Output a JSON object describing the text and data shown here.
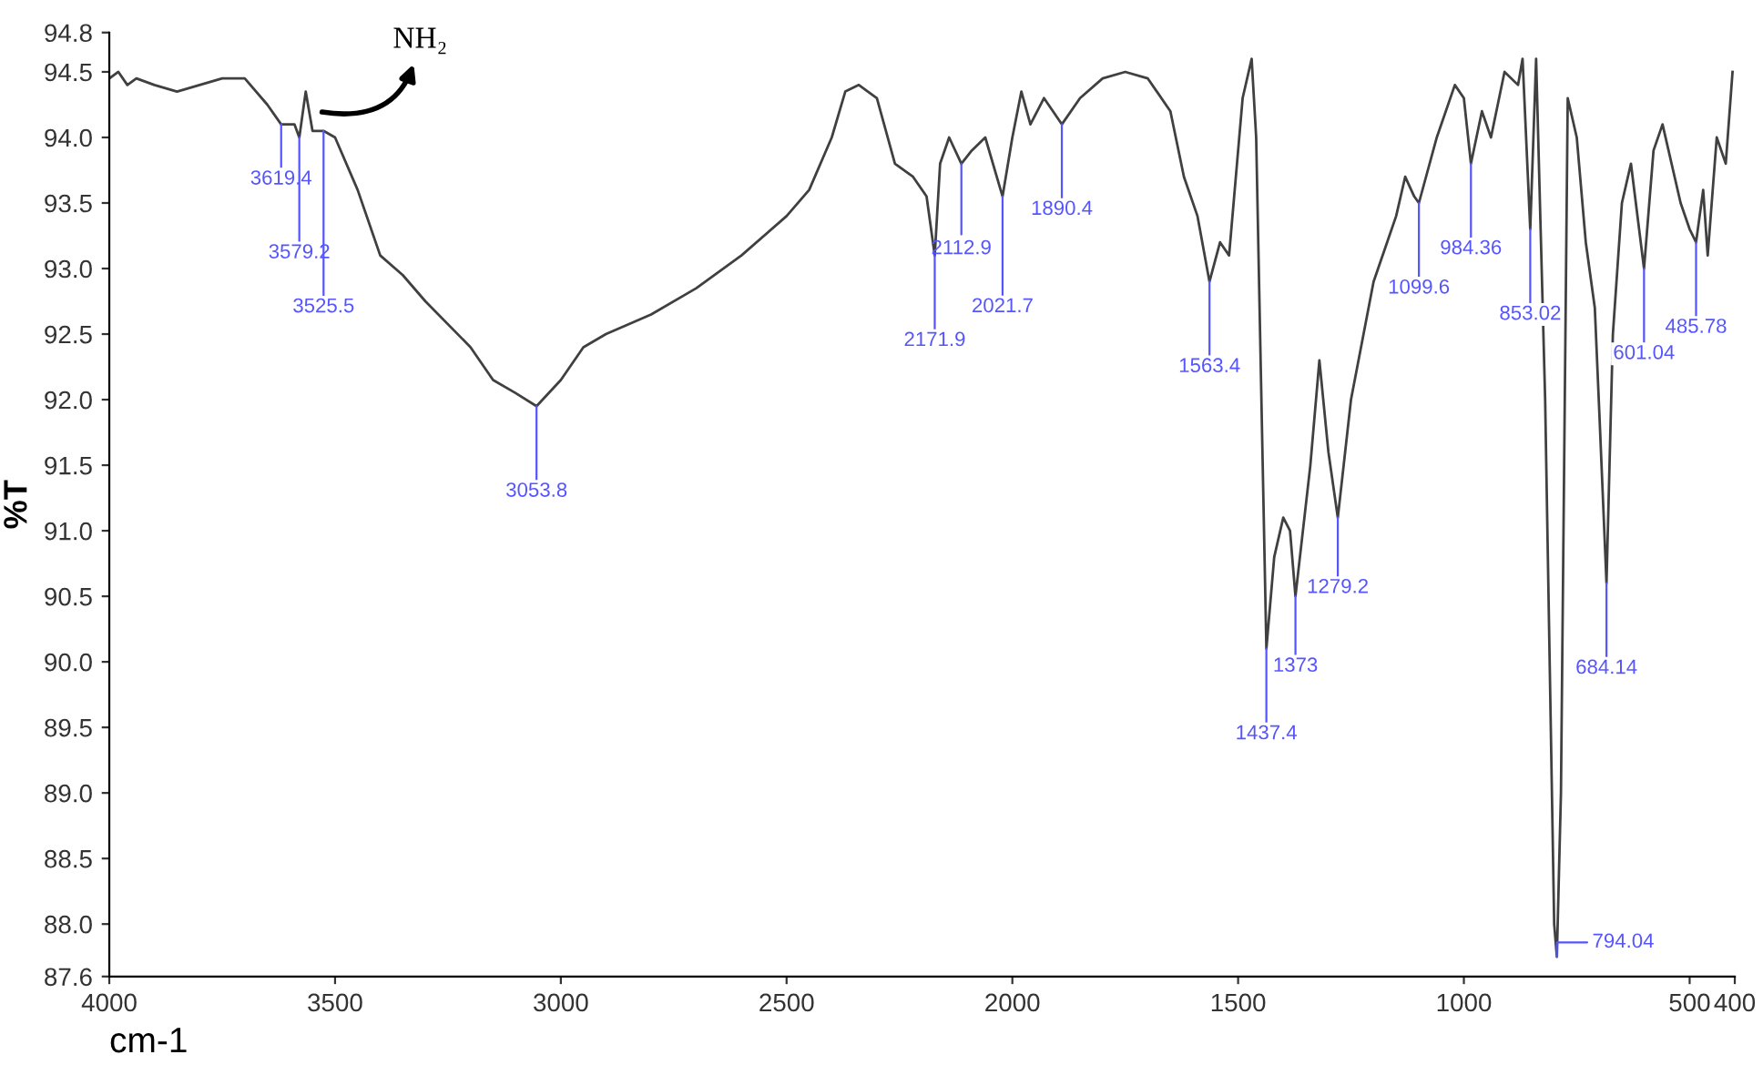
{
  "chart_data": {
    "type": "line",
    "xlabel": "cm-1",
    "ylabel": "%T",
    "xlim": [
      4000,
      400
    ],
    "ylim": [
      87.6,
      94.8
    ],
    "xticks": [
      4000,
      3500,
      3000,
      2500,
      2000,
      1500,
      1000,
      500,
      400
    ],
    "yticks": [
      {
        "value": 87.6,
        "label": "87.6"
      },
      {
        "value": 88,
        "label": "88.0"
      },
      88.5,
      {
        "value": 89,
        "label": "89.0"
      },
      89.5,
      {
        "value": 90,
        "label": "90.0"
      },
      90.5,
      {
        "value": 91,
        "label": "91.0"
      },
      91.5,
      {
        "value": 92,
        "label": "92.0"
      },
      92.5,
      {
        "value": 93,
        "label": "93.0"
      },
      93.5,
      {
        "value": 94,
        "label": "94.0"
      },
      94.5,
      94.8
    ],
    "grid": false,
    "legend": false,
    "marker": "none",
    "line_style": "solid",
    "series": [
      {
        "color": "#404040",
        "x": [
          4000,
          3980,
          3960,
          3940,
          3900,
          3850,
          3800,
          3750,
          3700,
          3650,
          3619.4,
          3590,
          3579.2,
          3565,
          3550,
          3525.5,
          3500,
          3450,
          3400,
          3350,
          3300,
          3200,
          3150,
          3100,
          3053.8,
          3000,
          2950,
          2900,
          2800,
          2700,
          2600,
          2500,
          2450,
          2400,
          2370,
          2340,
          2300,
          2260,
          2220,
          2190,
          2171.9,
          2160,
          2140,
          2112.9,
          2090,
          2060,
          2021.7,
          2000,
          1980,
          1960,
          1930,
          1890.4,
          1850,
          1800,
          1750,
          1700,
          1650,
          1620,
          1590,
          1563.4,
          1540,
          1520,
          1490,
          1470,
          1460,
          1437.4,
          1420,
          1400,
          1385,
          1373,
          1340,
          1320,
          1300,
          1279.2,
          1250,
          1200,
          1150,
          1130,
          1110,
          1099.6,
          1060,
          1020,
          1000,
          984.36,
          960,
          940,
          910,
          880,
          870,
          853.02,
          840,
          820,
          800,
          794.04,
          785,
          770,
          750,
          730,
          710,
          700,
          684.14,
          670,
          650,
          630,
          601.04,
          580,
          560,
          520,
          500,
          485.78,
          470,
          460,
          440,
          420,
          405
        ],
        "values": [
          94.45,
          94.5,
          94.4,
          94.45,
          94.4,
          94.35,
          94.4,
          94.45,
          94.45,
          94.25,
          94.1,
          94.1,
          94.0,
          94.35,
          94.05,
          94.05,
          94.0,
          93.6,
          93.1,
          92.95,
          92.75,
          92.4,
          92.15,
          92.05,
          91.95,
          92.15,
          92.4,
          92.5,
          92.65,
          92.85,
          93.1,
          93.4,
          93.6,
          94.0,
          94.35,
          94.4,
          94.3,
          93.8,
          93.7,
          93.55,
          93.1,
          93.8,
          94.0,
          93.8,
          93.9,
          94.0,
          93.55,
          94.0,
          94.35,
          94.1,
          94.3,
          94.1,
          94.3,
          94.45,
          94.5,
          94.45,
          94.2,
          93.7,
          93.4,
          92.9,
          93.2,
          93.1,
          94.3,
          94.6,
          94.0,
          90.1,
          90.8,
          91.1,
          91.0,
          90.5,
          91.5,
          92.3,
          91.6,
          91.1,
          92.0,
          92.9,
          93.4,
          93.7,
          93.55,
          93.5,
          94.0,
          94.4,
          94.3,
          93.8,
          94.2,
          94.0,
          94.5,
          94.4,
          94.6,
          93.3,
          94.6,
          92.0,
          88.0,
          87.75,
          89.0,
          94.3,
          94.0,
          93.2,
          92.7,
          91.9,
          90.6,
          92.5,
          93.5,
          93.8,
          93.0,
          93.9,
          94.1,
          93.5,
          93.3,
          93.2,
          93.6,
          93.1,
          94.0,
          93.8,
          94.5
        ]
      }
    ],
    "annotations": [
      {
        "text": "3619.4",
        "x": 3619.4,
        "y": 94.1
      },
      {
        "text": "3579.2",
        "x": 3579.2,
        "y": 94.0
      },
      {
        "text": "3525.5",
        "x": 3525.5,
        "y": 94.05
      },
      {
        "text": "3053.8",
        "x": 3053.8,
        "y": 91.95
      },
      {
        "text": "2171.9",
        "x": 2171.9,
        "y": 93.1
      },
      {
        "text": "2112.9",
        "x": 2112.9,
        "y": 93.8
      },
      {
        "text": "2021.7",
        "x": 2021.7,
        "y": 93.55
      },
      {
        "text": "1890.4",
        "x": 1890.4,
        "y": 94.1
      },
      {
        "text": "1563.4",
        "x": 1563.4,
        "y": 92.9
      },
      {
        "text": "1437.4",
        "x": 1437.4,
        "y": 90.1
      },
      {
        "text": "1373",
        "x": 1373,
        "y": 90.5
      },
      {
        "text": "1279.2",
        "x": 1279.2,
        "y": 91.1
      },
      {
        "text": "1099.6",
        "x": 1099.6,
        "y": 93.5
      },
      {
        "text": "984.36",
        "x": 984.36,
        "y": 93.8
      },
      {
        "text": "853.02",
        "x": 853.02,
        "y": 93.3
      },
      {
        "text": "794.04",
        "x": 794.04,
        "y": 87.75
      },
      {
        "text": "684.14",
        "x": 684.14,
        "y": 90.6
      },
      {
        "text": "601.04",
        "x": 601.04,
        "y": 93.0
      },
      {
        "text": "485.78",
        "x": 485.78,
        "y": 93.2
      },
      {
        "text": "NH₂",
        "x": 3540,
        "y": 94.2
      }
    ]
  }
}
